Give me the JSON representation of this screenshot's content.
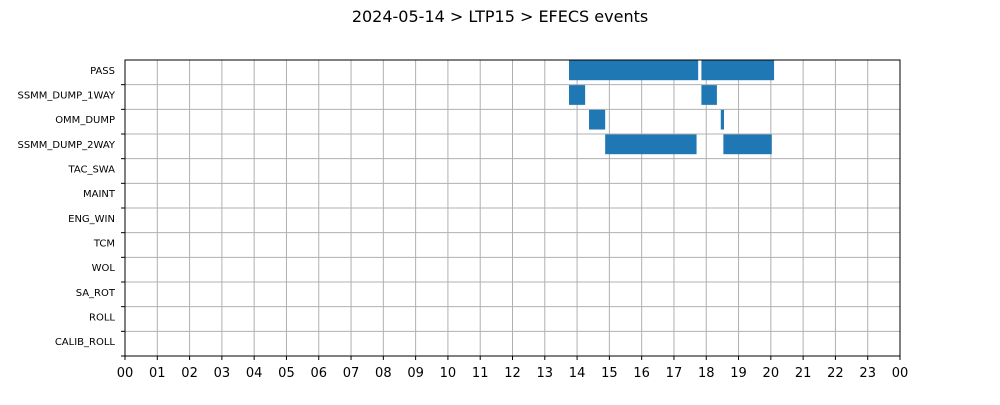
{
  "chart_data": {
    "type": "gantt",
    "title": "2024-05-14 > LTP15 > EFECS events",
    "xlabel": "",
    "ylabel": "",
    "x_unit": "hour",
    "xlim": [
      0,
      24
    ],
    "xtick_labels": [
      "00",
      "01",
      "02",
      "03",
      "04",
      "05",
      "06",
      "07",
      "08",
      "09",
      "10",
      "11",
      "12",
      "13",
      "14",
      "15",
      "16",
      "17",
      "18",
      "19",
      "20",
      "21",
      "22",
      "23",
      "00"
    ],
    "categories": [
      "PASS",
      "SSMM_DUMP_1WAY",
      "OMM_DUMP",
      "SSMM_DUMP_2WAY",
      "TAC_SWA",
      "MAINT",
      "ENG_WIN",
      "TCM",
      "WOL",
      "SA_ROT",
      "ROLL",
      "CALIB_ROLL"
    ],
    "grid": true,
    "bar_color": "#1f77b4",
    "events": [
      {
        "category": "PASS",
        "start": 13.75,
        "end": 17.75
      },
      {
        "category": "PASS",
        "start": 17.85,
        "end": 20.1
      },
      {
        "category": "SSMM_DUMP_1WAY",
        "start": 13.75,
        "end": 14.25
      },
      {
        "category": "SSMM_DUMP_1WAY",
        "start": 17.85,
        "end": 18.33
      },
      {
        "category": "OMM_DUMP",
        "start": 14.37,
        "end": 14.87
      },
      {
        "category": "OMM_DUMP",
        "start": 18.45,
        "end": 18.55
      },
      {
        "category": "SSMM_DUMP_2WAY",
        "start": 14.87,
        "end": 17.7
      },
      {
        "category": "SSMM_DUMP_2WAY",
        "start": 18.53,
        "end": 20.03
      }
    ]
  }
}
